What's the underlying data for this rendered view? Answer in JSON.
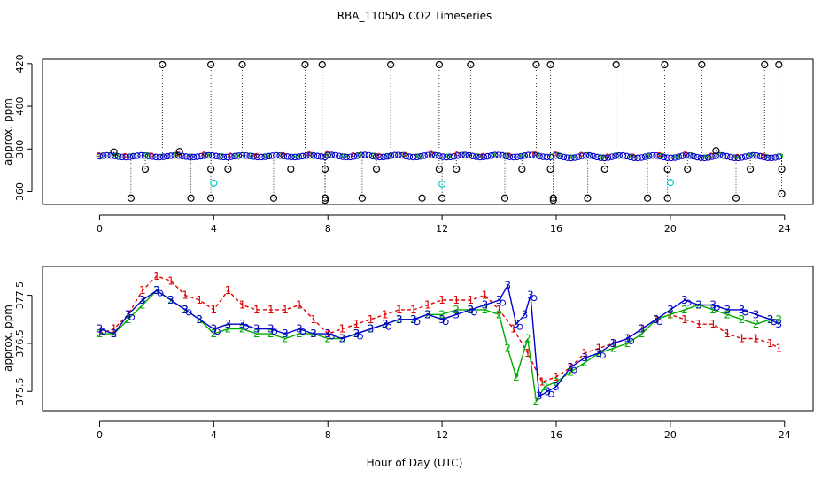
{
  "chart_data": [
    {
      "type": "scatter",
      "title": "RBA_110505  CO2 Timeseries",
      "xlabel": "",
      "ylabel": "approx. ppm",
      "xlim": [
        -2,
        25
      ],
      "ylim": [
        354,
        422
      ],
      "x_ticks": [
        "0",
        "4",
        "8",
        "12",
        "16",
        "20",
        "24"
      ],
      "y_ticks": [
        "360",
        "380",
        "400",
        "420"
      ],
      "grid": false,
      "series": [
        {
          "style": "baseline-points",
          "color": "#0000cc",
          "segments": [
            {
              "x0": 0.0,
              "x1": 7.9,
              "y0": 376.2,
              "y1": 377.0
            },
            {
              "x0": 8.0,
              "x1": 15.8,
              "y0": 376.2,
              "y1": 377.2
            },
            {
              "x0": 16.0,
              "x1": 23.8,
              "y0": 375.8,
              "y1": 377.0
            }
          ]
        },
        {
          "style": "outliers",
          "color": "#000000",
          "x": [
            0.5,
            1.1,
            1.6,
            2.2,
            2.8,
            3.2,
            3.9,
            3.9,
            3.9,
            4.5,
            5.0,
            6.1,
            6.7,
            7.2,
            7.8,
            7.9,
            7.9,
            7.9,
            9.2,
            9.7,
            10.2,
            11.3,
            11.9,
            11.9,
            12.0,
            12.5,
            13.0,
            14.2,
            14.8,
            15.3,
            15.8,
            15.8,
            15.9,
            15.9,
            17.1,
            17.7,
            18.1,
            19.2,
            19.8,
            19.9,
            19.9,
            20.6,
            21.1,
            21.6,
            22.3,
            22.8,
            23.3,
            23.8,
            23.9,
            23.9
          ],
          "y": [
            378.6,
            357.0,
            370.6,
            419.5,
            378.8,
            357.0,
            419.5,
            370.6,
            357.0,
            370.6,
            419.5,
            357.0,
            370.6,
            419.5,
            419.5,
            370.6,
            357.0,
            356.0,
            357.0,
            370.6,
            419.5,
            357.0,
            419.5,
            370.6,
            357.0,
            370.6,
            419.5,
            357.0,
            370.6,
            419.5,
            419.5,
            370.6,
            357.0,
            356.0,
            357.0,
            370.6,
            419.5,
            357.0,
            419.5,
            370.6,
            357.0,
            370.6,
            419.5,
            379.2,
            357.0,
            370.6,
            419.5,
            419.5,
            370.6,
            359.0
          ]
        },
        {
          "style": "cyan-points",
          "color": "#00cccc",
          "x": [
            4.0,
            12.0,
            20.0
          ],
          "y": [
            364.0,
            363.6,
            364.3
          ]
        }
      ]
    },
    {
      "type": "line",
      "xlabel": "Hour of Day (UTC)",
      "ylabel": "approx. ppm",
      "xlim": [
        -2,
        25
      ],
      "ylim": [
        375.1,
        378.1
      ],
      "x_ticks": [
        "0",
        "4",
        "8",
        "12",
        "16",
        "20",
        "24"
      ],
      "y_ticks": [
        "375.5",
        "376.5",
        "377.5"
      ],
      "grid": false,
      "series": [
        {
          "symbol": "1",
          "color": "#dd0000",
          "dashed": true,
          "x": [
            0,
            0.5,
            1.0,
            1.5,
            2.0,
            2.5,
            3.0,
            3.5,
            4.0,
            4.5,
            5.0,
            5.5,
            6.0,
            6.5,
            7.0,
            7.5,
            8.0,
            8.5,
            9.0,
            9.5,
            10.0,
            10.5,
            11.0,
            11.5,
            12.0,
            12.5,
            13.0,
            13.5,
            14.0,
            14.5,
            15.0,
            15.5,
            16.0,
            16.5,
            17.0,
            17.5,
            18.0,
            18.5,
            19.0,
            19.5,
            20.0,
            20.5,
            21.0,
            21.5,
            22.0,
            22.5,
            23.0,
            23.5,
            23.8
          ],
          "y": [
            376.7,
            376.8,
            377.1,
            377.6,
            377.9,
            377.8,
            377.5,
            377.4,
            377.2,
            377.6,
            377.3,
            377.2,
            377.2,
            377.2,
            377.3,
            377.0,
            376.7,
            376.8,
            376.9,
            377.0,
            377.1,
            377.2,
            377.2,
            377.3,
            377.4,
            377.4,
            377.4,
            377.5,
            377.2,
            376.8,
            376.3,
            375.7,
            375.8,
            376.0,
            376.3,
            376.4,
            376.5,
            376.6,
            376.8,
            377.0,
            377.1,
            377.0,
            376.9,
            376.9,
            376.7,
            376.6,
            376.6,
            376.5,
            376.4
          ]
        },
        {
          "symbol": "2",
          "color": "#00aa00",
          "dashed": false,
          "x": [
            0,
            0.5,
            1.0,
            1.5,
            2.0,
            2.5,
            3.0,
            3.5,
            4.0,
            4.5,
            5.0,
            5.5,
            6.0,
            6.5,
            7.0,
            7.5,
            8.0,
            8.5,
            9.0,
            9.5,
            10.0,
            10.5,
            11.0,
            11.5,
            12.0,
            12.5,
            13.0,
            13.5,
            14.0,
            14.3,
            14.6,
            15.0,
            15.3,
            15.6,
            16.0,
            16.5,
            17.0,
            17.5,
            18.0,
            18.5,
            19.0,
            19.5,
            20.0,
            20.5,
            21.0,
            21.5,
            22.0,
            22.5,
            23.0,
            23.5,
            23.8
          ],
          "y": [
            376.7,
            376.7,
            377.0,
            377.3,
            377.6,
            377.4,
            377.2,
            377.0,
            376.7,
            376.8,
            376.8,
            376.7,
            376.7,
            376.6,
            376.7,
            376.7,
            376.6,
            376.6,
            376.7,
            376.8,
            376.9,
            377.0,
            377.0,
            377.1,
            377.1,
            377.2,
            377.2,
            377.2,
            377.1,
            376.4,
            375.8,
            376.6,
            375.3,
            375.6,
            375.7,
            375.9,
            376.1,
            376.3,
            376.4,
            376.5,
            376.7,
            377.0,
            377.1,
            377.2,
            377.3,
            377.2,
            377.1,
            377.0,
            376.9,
            377.0,
            377.0
          ]
        },
        {
          "symbol": "3",
          "color": "#0000cc",
          "dashed": false,
          "x": [
            0,
            0.5,
            1.0,
            1.5,
            2.0,
            2.5,
            3.0,
            3.5,
            4.0,
            4.5,
            5.0,
            5.5,
            6.0,
            6.5,
            7.0,
            7.5,
            8.0,
            8.5,
            9.0,
            9.5,
            10.0,
            10.5,
            11.0,
            11.5,
            12.0,
            12.5,
            13.0,
            13.5,
            14.0,
            14.3,
            14.6,
            14.9,
            15.1,
            15.4,
            15.7,
            16.0,
            16.5,
            17.0,
            17.5,
            18.0,
            18.5,
            19.0,
            19.5,
            20.0,
            20.5,
            21.0,
            21.5,
            22.0,
            22.5,
            23.0,
            23.5,
            23.8
          ],
          "y": [
            376.8,
            376.7,
            377.1,
            377.4,
            377.6,
            377.4,
            377.2,
            377.0,
            376.8,
            376.9,
            376.9,
            376.8,
            376.8,
            376.7,
            376.8,
            376.7,
            376.7,
            376.6,
            376.7,
            376.8,
            376.9,
            377.0,
            377.0,
            377.1,
            377.0,
            377.1,
            377.2,
            377.3,
            377.4,
            377.7,
            376.9,
            377.1,
            377.5,
            375.4,
            375.5,
            375.6,
            376.0,
            376.2,
            376.3,
            376.5,
            376.6,
            376.8,
            377.0,
            377.2,
            377.4,
            377.3,
            377.3,
            377.2,
            377.2,
            377.1,
            377.0,
            376.9
          ]
        }
      ]
    }
  ]
}
